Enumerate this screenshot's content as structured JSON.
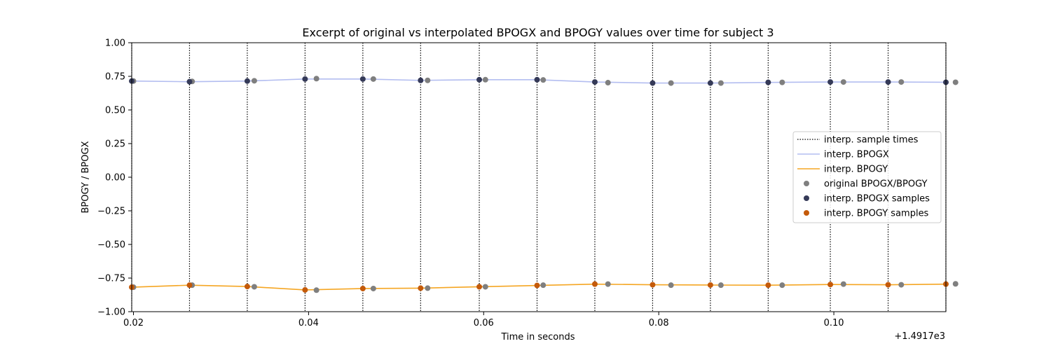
{
  "chart_data": {
    "type": "line",
    "title": "Excerpt of original vs interpolated BPOGX and BPOGY values over time for subject 3",
    "xlabel": "Time in seconds",
    "ylabel": "BPOGY / BPOGX",
    "x_offset_label": "+1.4917e3",
    "xlim": [
      0.0198,
      0.1128
    ],
    "ylim": [
      -1.0,
      1.0
    ],
    "x_ticks": [
      0.02,
      0.04,
      0.06,
      0.08,
      0.1
    ],
    "x_tick_labels": [
      "0.02",
      "0.04",
      "0.06",
      "0.08",
      "0.10"
    ],
    "y_ticks": [
      1.0,
      0.75,
      0.5,
      0.25,
      0.0,
      -0.25,
      -0.5,
      -0.75,
      -1.0
    ],
    "y_tick_labels": [
      "1.00",
      "0.75",
      "0.50",
      "0.25",
      "0.00",
      "−0.25",
      "−0.50",
      "−0.75",
      "−1.00"
    ],
    "grid": false,
    "legend_position": "center-right",
    "legend": [
      {
        "label": "interp. sample times",
        "kind": "dotted-line",
        "color": "#000000"
      },
      {
        "label": "interp. BPOGX",
        "kind": "line",
        "color": "#b3bdf0"
      },
      {
        "label": "interp. BPOGY",
        "kind": "line",
        "color": "#f5a623"
      },
      {
        "label": "original BPOGX/BPOGY",
        "kind": "marker",
        "color": "#7f7f7f"
      },
      {
        "label": "interp. BPOGX samples",
        "kind": "marker",
        "color": "#353a58"
      },
      {
        "label": "interp. BPOGY samples",
        "kind": "marker",
        "color": "#c45a0a"
      }
    ],
    "sample_times": [
      0.0198,
      0.0264,
      0.033,
      0.0396,
      0.0462,
      0.0528,
      0.0595,
      0.0661,
      0.0727,
      0.0793,
      0.0859,
      0.0925,
      0.0996,
      0.1062,
      0.1128
    ],
    "series": [
      {
        "name": "interp. BPOGX",
        "color": "#b3bdf0",
        "x": [
          0.0198,
          0.0264,
          0.033,
          0.0396,
          0.0462,
          0.0528,
          0.0595,
          0.0661,
          0.0727,
          0.0793,
          0.0859,
          0.0925,
          0.0996,
          0.1062,
          0.1128
        ],
        "y": [
          0.715,
          0.71,
          0.715,
          0.73,
          0.73,
          0.72,
          0.725,
          0.725,
          0.708,
          0.7,
          0.7,
          0.705,
          0.708,
          0.708,
          0.706
        ]
      },
      {
        "name": "interp. BPOGY",
        "color": "#f5a623",
        "x": [
          0.0198,
          0.0264,
          0.033,
          0.0396,
          0.0462,
          0.0528,
          0.0595,
          0.0661,
          0.0727,
          0.0793,
          0.0859,
          0.0925,
          0.0996,
          0.1062,
          0.1128
        ],
        "y": [
          -0.818,
          -0.803,
          -0.813,
          -0.838,
          -0.828,
          -0.825,
          -0.815,
          -0.805,
          -0.795,
          -0.8,
          -0.802,
          -0.803,
          -0.798,
          -0.8,
          -0.795
        ]
      },
      {
        "name": "original BPOGX/BPOGY",
        "color": "#7f7f7f",
        "x": [
          0.02,
          0.0267,
          0.0338,
          0.0409,
          0.0474,
          0.0536,
          0.0602,
          0.0668,
          0.0742,
          0.0814,
          0.0871,
          0.0941,
          0.1011,
          0.1077,
          0.1139
        ],
        "x_y": [
          0.02,
          0.0267,
          0.0338,
          0.0409,
          0.0474,
          0.0536,
          0.0602,
          0.0668,
          0.0742,
          0.0814,
          0.0871,
          0.0941,
          0.1011,
          0.1077,
          0.1139
        ],
        "y": [
          0.715,
          0.712,
          0.717,
          0.733,
          0.73,
          0.72,
          0.725,
          0.723,
          0.703,
          0.7,
          0.7,
          0.705,
          0.708,
          0.708,
          0.706
        ],
        "y2": [
          -0.818,
          -0.803,
          -0.815,
          -0.84,
          -0.828,
          -0.825,
          -0.815,
          -0.803,
          -0.795,
          -0.803,
          -0.803,
          -0.803,
          -0.795,
          -0.8,
          -0.793
        ]
      },
      {
        "name": "interp. BPOGX samples",
        "color": "#353a58",
        "x": [
          0.0198,
          0.0264,
          0.033,
          0.0396,
          0.0462,
          0.0528,
          0.0595,
          0.0661,
          0.0727,
          0.0793,
          0.0859,
          0.0925,
          0.0996,
          0.1062,
          0.1128
        ],
        "y": [
          0.715,
          0.71,
          0.715,
          0.73,
          0.73,
          0.72,
          0.725,
          0.725,
          0.708,
          0.7,
          0.7,
          0.705,
          0.708,
          0.708,
          0.706
        ]
      },
      {
        "name": "interp. BPOGY samples",
        "color": "#c45a0a",
        "x": [
          0.0198,
          0.0264,
          0.033,
          0.0396,
          0.0462,
          0.0528,
          0.0595,
          0.0661,
          0.0727,
          0.0793,
          0.0859,
          0.0925,
          0.0996,
          0.1062,
          0.1128
        ],
        "y": [
          -0.818,
          -0.803,
          -0.813,
          -0.838,
          -0.828,
          -0.825,
          -0.815,
          -0.805,
          -0.795,
          -0.8,
          -0.802,
          -0.803,
          -0.798,
          -0.8,
          -0.795
        ]
      }
    ]
  }
}
